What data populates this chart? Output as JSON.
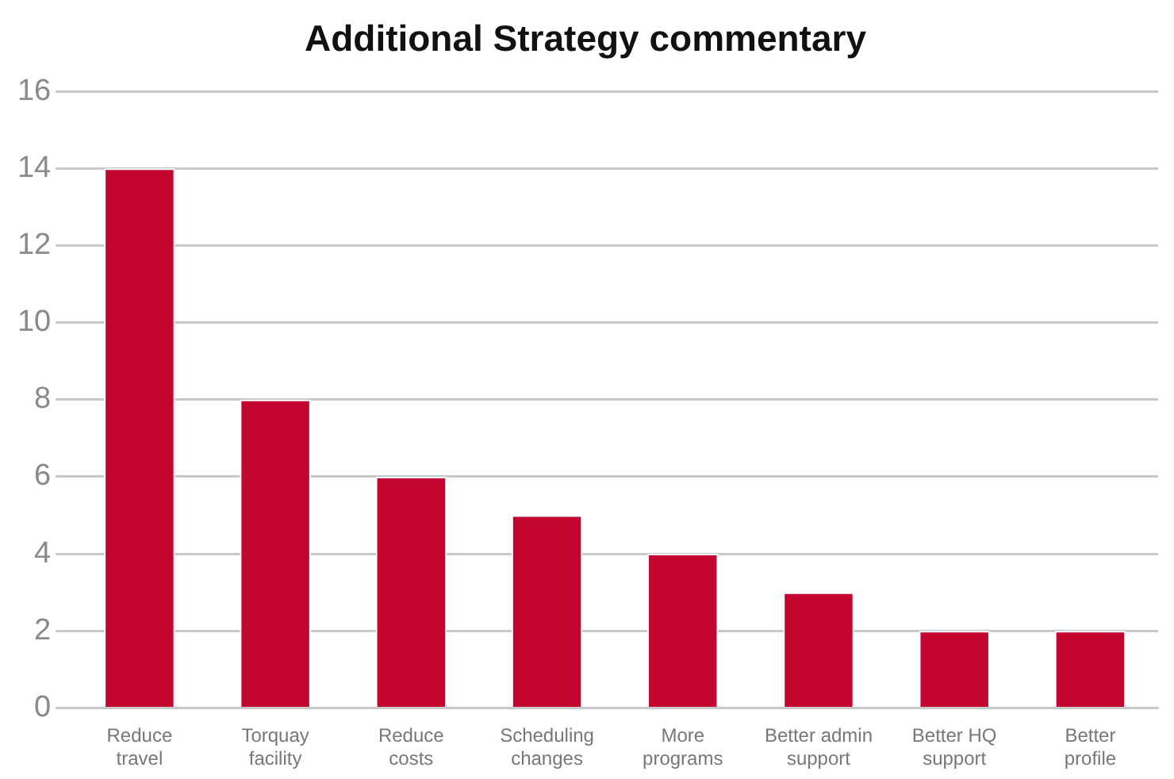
{
  "chart_data": {
    "type": "bar",
    "title": "Additional Strategy commentary",
    "categories": [
      "Reduce travel",
      "Torquay facility",
      "Reduce costs",
      "Scheduling changes",
      "More programs",
      "Better admin support",
      "Better HQ support",
      "Better profile"
    ],
    "values": [
      14,
      8,
      6,
      5,
      4,
      3,
      2,
      2
    ],
    "color": "#c20630",
    "ylim": [
      0,
      16
    ],
    "yticks": [
      0,
      2,
      4,
      6,
      8,
      10,
      12,
      14,
      16
    ],
    "grid": "y",
    "legend": false
  }
}
